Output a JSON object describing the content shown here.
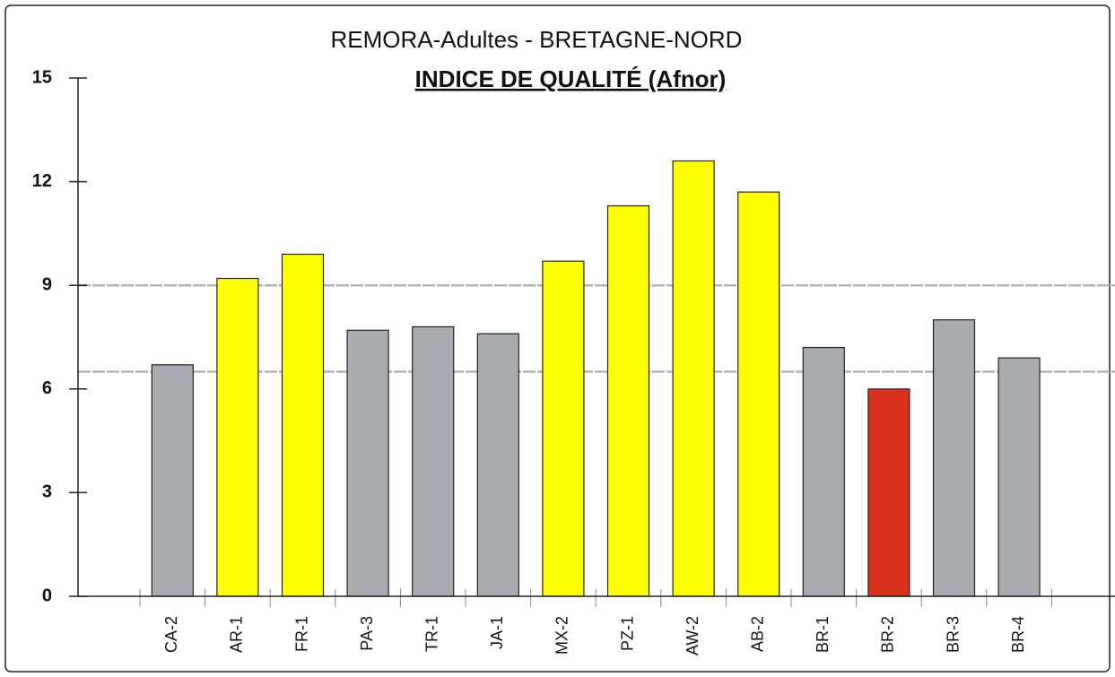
{
  "chart_data": {
    "type": "bar",
    "title": "REMORA-Adultes - BRETAGNE-NORD",
    "subtitle": "INDICE DE QUALITÉ (Afnor)",
    "categories": [
      "CA-2",
      "AR-1",
      "FR-1",
      "PA-3",
      "TR-1",
      "JA-1",
      "MX-2",
      "PZ-1",
      "AW-2",
      "AB-2",
      "BR-1",
      "BR-2",
      "BR-3",
      "BR-4"
    ],
    "values": [
      6.7,
      9.2,
      9.9,
      7.7,
      7.8,
      7.6,
      9.7,
      11.3,
      12.6,
      11.7,
      7.2,
      6.0,
      8.0,
      6.9
    ],
    "colors": [
      "#a8acb0",
      "#ffff00",
      "#ffff00",
      "#a8acb0",
      "#a8acb0",
      "#a8acb0",
      "#ffff00",
      "#ffff00",
      "#ffff00",
      "#ffff00",
      "#a8acb0",
      "#d8321e",
      "#a8acb0",
      "#a8acb0"
    ],
    "ylim": [
      0,
      15
    ],
    "yticks": [
      0,
      3,
      6,
      9,
      12,
      15
    ],
    "reference_lines": [
      9,
      6.5
    ],
    "grid": false
  }
}
